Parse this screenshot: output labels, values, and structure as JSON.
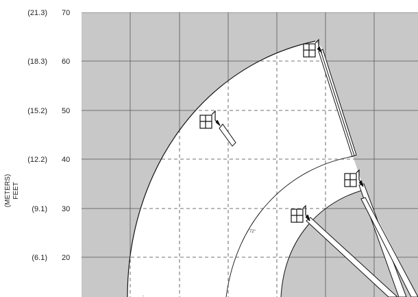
{
  "y_axis": {
    "title_units": "(METERS)",
    "title_feet": "FEET",
    "ticks": [
      {
        "feet": "70",
        "meters": "(21.3)"
      },
      {
        "feet": "60",
        "meters": "(18.3)"
      },
      {
        "feet": "50",
        "meters": "(15.2)"
      },
      {
        "feet": "40",
        "meters": "(12.2)"
      },
      {
        "feet": "30",
        "meters": "(9.1)"
      },
      {
        "feet": "20",
        "meters": "(6.1)"
      }
    ]
  },
  "labels": {
    "angle": "72°"
  },
  "colors": {
    "grid_background": "#c8c8c8",
    "envelope_fill": "#ffffff",
    "grid_line": "#555555",
    "line": "#111111"
  }
}
